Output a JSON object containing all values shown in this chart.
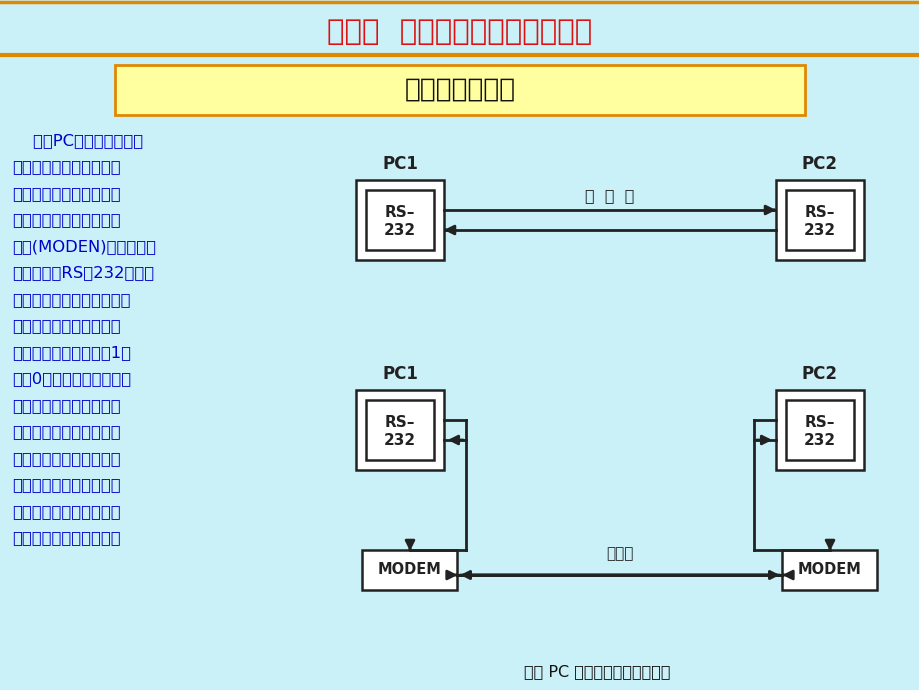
{
  "bg_color": "#caf0f8",
  "title_text": "第九章  彩色图形适配器及其编程",
  "title_color": "#dd1111",
  "subtitle_text": "串口的连接方式",
  "subtitle_color": "#111111",
  "subtitle_bg": "#ffffa0",
  "subtitle_border": "#e08800",
  "body_lines": [
    "    两台PC机或设备进行近",
    "距离通讯时，可直接将它",
    "们连接。当它们进行远距",
    "离通讯时，要使用调制解",
    "调器(MODEN)连接到电话",
    "线上，因为RS－232标准串",
    "行接口输出的是电压信号，",
    "不能直接接到电话线上，",
    "调制解调器把代表逻辑1和",
    "逻辑0的电压信号转换成能",
    "在电话线上传输的不同频",
    "率的信号：电话线另一端",
    "的调制解调器又把这些不",
    "同频率的信号转换成接口",
    "要求的电压信号。左图为",
    "两种连接方式的示意图。"
  ],
  "body_color": "#0000cc",
  "caption_text": "两台 PC 机串行通讯的连接方式",
  "caption_color": "#111111",
  "dc": "#222222",
  "orange_line": "#e08800",
  "header_bg": "#caf0f8",
  "label_pc1": "PC1",
  "label_pc2": "PC2",
  "label_rs232_top": "RS–",
  "label_rs232_bot": "232",
  "label_jinjuli": "近  距  离",
  "label_modem": "MODEM",
  "label_dianhuaxian": "电话线"
}
